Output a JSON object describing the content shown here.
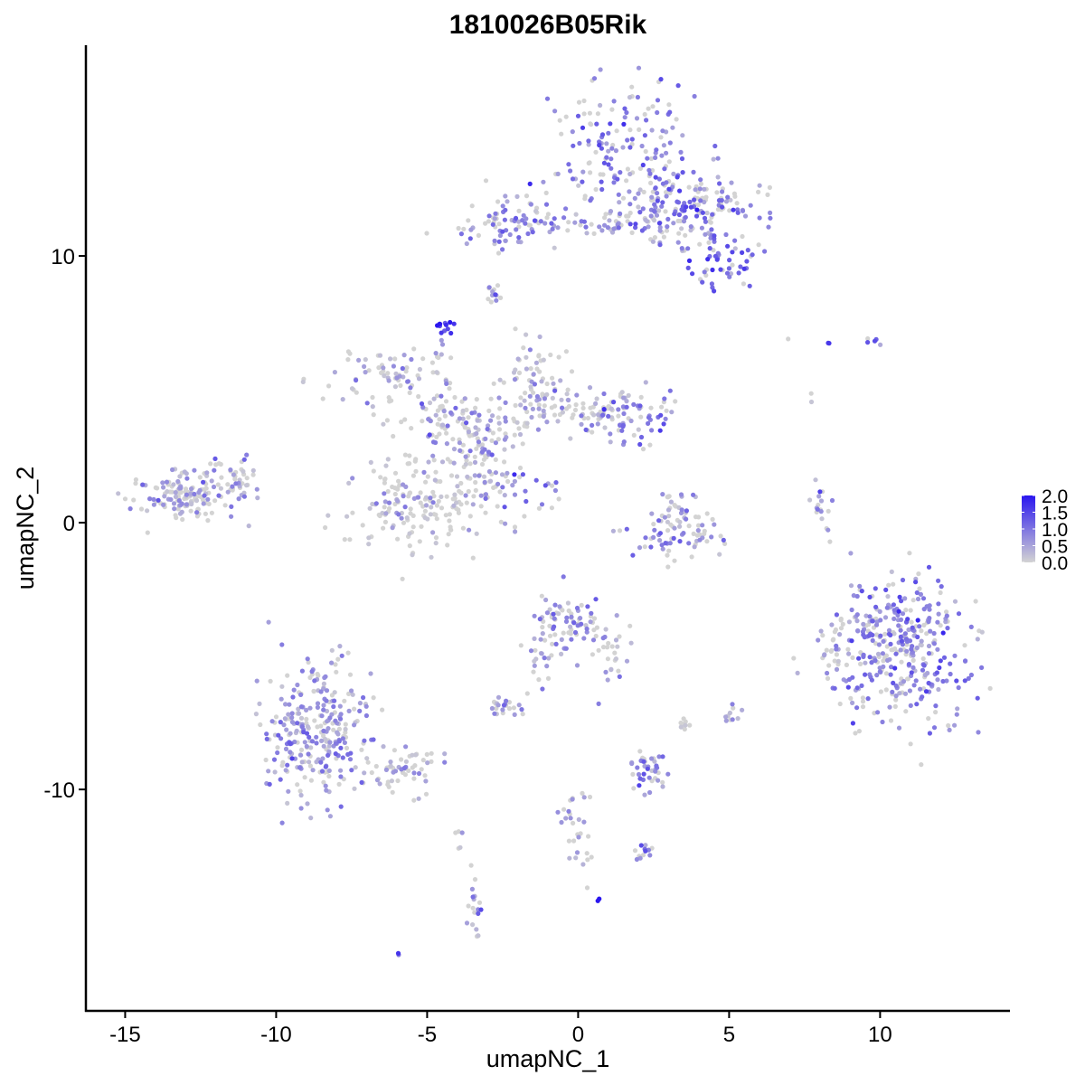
{
  "chart_data": {
    "type": "scatter",
    "title": "1810026B05Rik",
    "xlabel": "umapNC_1",
    "ylabel": "umapNC_2",
    "xlim": [
      -16.3,
      14.3
    ],
    "ylim": [
      -18.3,
      17.9
    ],
    "x_ticks": [
      -15,
      -10,
      -5,
      0,
      5,
      10
    ],
    "x_tick_labels": [
      "-15",
      "-10",
      "-5",
      "0",
      "5",
      "10"
    ],
    "y_ticks": [
      -10,
      0,
      10
    ],
    "y_tick_labels": [
      "-10",
      "0",
      "10"
    ],
    "grid": false,
    "legend_placement": "right",
    "color_scale": {
      "low_color": "#d3d3d3",
      "high_color": "#2a16ef",
      "min": 0.0,
      "max": 2.0,
      "ticks": [
        0.0,
        0.5,
        1.0,
        1.5,
        2.0
      ],
      "tick_labels": [
        "0.0",
        "0.5",
        "1.0",
        "1.5",
        "2.0"
      ]
    },
    "clusters": [
      {
        "cx": 1.5,
        "cy": 14.0,
        "sx": 1.0,
        "sy": 1.3,
        "n": 170,
        "expr": 0.55,
        "pos_frac": 0.72
      },
      {
        "cx": 3.8,
        "cy": 11.8,
        "sx": 1.2,
        "sy": 0.8,
        "n": 160,
        "expr": 0.55,
        "pos_frac": 0.7
      },
      {
        "cx": 4.9,
        "cy": 9.6,
        "sx": 0.5,
        "sy": 0.6,
        "n": 50,
        "expr": 0.7,
        "pos_frac": 0.8
      },
      {
        "cx": -2.0,
        "cy": 11.3,
        "sx": 0.8,
        "sy": 0.5,
        "n": 75,
        "expr": 0.55,
        "pos_frac": 0.7
      },
      {
        "cx": 0.5,
        "cy": 11.1,
        "sx": 2.2,
        "sy": 0.22,
        "n": 60,
        "expr": 0.45,
        "pos_frac": 0.6
      },
      {
        "cx": -2.8,
        "cy": 8.6,
        "sx": 0.15,
        "sy": 0.25,
        "n": 12,
        "expr": 0.4,
        "pos_frac": 0.6
      },
      {
        "cx": -4.4,
        "cy": 7.3,
        "sx": 0.15,
        "sy": 0.15,
        "n": 12,
        "expr": 0.9,
        "pos_frac": 0.9
      },
      {
        "cx": -6.3,
        "cy": 5.5,
        "sx": 0.9,
        "sy": 0.6,
        "n": 70,
        "expr": 0.3,
        "pos_frac": 0.5
      },
      {
        "cx": -4.0,
        "cy": 3.8,
        "sx": 1.0,
        "sy": 0.6,
        "n": 90,
        "expr": 0.4,
        "pos_frac": 0.55
      },
      {
        "cx": -3.2,
        "cy": 2.5,
        "sx": 0.9,
        "sy": 1.2,
        "n": 110,
        "expr": 0.35,
        "pos_frac": 0.5
      },
      {
        "cx": -5.3,
        "cy": 0.6,
        "sx": 1.1,
        "sy": 0.9,
        "n": 170,
        "expr": 0.2,
        "pos_frac": 0.35
      },
      {
        "cx": -1.2,
        "cy": 5.0,
        "sx": 0.7,
        "sy": 0.9,
        "n": 70,
        "expr": 0.35,
        "pos_frac": 0.5
      },
      {
        "cx": 0.4,
        "cy": 4.3,
        "sx": 1.1,
        "sy": 0.4,
        "n": 70,
        "expr": 0.3,
        "pos_frac": 0.45
      },
      {
        "cx": 1.9,
        "cy": 4.0,
        "sx": 0.6,
        "sy": 0.5,
        "n": 55,
        "expr": 0.6,
        "pos_frac": 0.75
      },
      {
        "cx": -1.5,
        "cy": 1.3,
        "sx": 0.6,
        "sy": 0.4,
        "n": 18,
        "expr": 0.7,
        "pos_frac": 0.8
      },
      {
        "cx": -4.5,
        "cy": 6.0,
        "sx": 0.15,
        "sy": 0.6,
        "n": 12,
        "expr": 0.2,
        "pos_frac": 0.4
      },
      {
        "cx": -13.0,
        "cy": 1.0,
        "sx": 0.9,
        "sy": 0.5,
        "n": 150,
        "expr": 0.35,
        "pos_frac": 0.55
      },
      {
        "cx": -11.5,
        "cy": 1.7,
        "sx": 0.5,
        "sy": 0.5,
        "n": 40,
        "expr": 0.3,
        "pos_frac": 0.5
      },
      {
        "cx": 3.1,
        "cy": -0.4,
        "sx": 0.8,
        "sy": 0.5,
        "n": 70,
        "expr": 0.45,
        "pos_frac": 0.6
      },
      {
        "cx": 3.1,
        "cy": 0.6,
        "sx": 0.3,
        "sy": 0.5,
        "n": 22,
        "expr": 0.35,
        "pos_frac": 0.55
      },
      {
        "cx": 8.1,
        "cy": 0.4,
        "sx": 0.2,
        "sy": 0.4,
        "n": 18,
        "expr": 0.35,
        "pos_frac": 0.6
      },
      {
        "cx": 10.7,
        "cy": -4.7,
        "sx": 1.1,
        "sy": 1.3,
        "n": 360,
        "expr": 0.55,
        "pos_frac": 0.7
      },
      {
        "cx": 8.5,
        "cy": -4.8,
        "sx": 0.25,
        "sy": 0.5,
        "n": 25,
        "expr": 0.3,
        "pos_frac": 0.5
      },
      {
        "cx": -0.4,
        "cy": -3.7,
        "sx": 0.6,
        "sy": 0.6,
        "n": 80,
        "expr": 0.4,
        "pos_frac": 0.6
      },
      {
        "cx": 1.0,
        "cy": -4.8,
        "sx": 0.5,
        "sy": 0.6,
        "n": 25,
        "expr": 0.35,
        "pos_frac": 0.55
      },
      {
        "cx": -1.3,
        "cy": -5.3,
        "sx": 0.3,
        "sy": 0.6,
        "n": 18,
        "expr": 0.35,
        "pos_frac": 0.55
      },
      {
        "cx": -8.6,
        "cy": -7.8,
        "sx": 0.9,
        "sy": 1.3,
        "n": 280,
        "expr": 0.4,
        "pos_frac": 0.62
      },
      {
        "cx": -6.0,
        "cy": -9.3,
        "sx": 0.9,
        "sy": 0.4,
        "n": 60,
        "expr": 0.3,
        "pos_frac": 0.5
      },
      {
        "cx": -2.4,
        "cy": -6.9,
        "sx": 0.25,
        "sy": 0.2,
        "n": 22,
        "expr": 0.5,
        "pos_frac": 0.6
      },
      {
        "cx": 2.3,
        "cy": -9.3,
        "sx": 0.4,
        "sy": 0.4,
        "n": 40,
        "expr": 0.45,
        "pos_frac": 0.6
      },
      {
        "cx": 5.0,
        "cy": -7.2,
        "sx": 0.15,
        "sy": 0.15,
        "n": 10,
        "expr": 0.4,
        "pos_frac": 0.6
      },
      {
        "cx": 3.4,
        "cy": -7.6,
        "sx": 0.15,
        "sy": 0.2,
        "n": 8,
        "expr": 0.1,
        "pos_frac": 0.2
      },
      {
        "cx": 0.0,
        "cy": -11.2,
        "sx": 0.3,
        "sy": 0.8,
        "n": 30,
        "expr": 0.3,
        "pos_frac": 0.5
      },
      {
        "cx": 2.2,
        "cy": -12.4,
        "sx": 0.3,
        "sy": 0.2,
        "n": 12,
        "expr": 0.6,
        "pos_frac": 0.7
      },
      {
        "cx": -3.4,
        "cy": -14.5,
        "sx": 0.15,
        "sy": 0.6,
        "n": 20,
        "expr": 0.4,
        "pos_frac": 0.6
      },
      {
        "cx": -3.9,
        "cy": -11.5,
        "sx": 0.1,
        "sy": 0.4,
        "n": 5,
        "expr": 0.1,
        "pos_frac": 0.2
      },
      {
        "cx": 9.7,
        "cy": 6.8,
        "sx": 0.15,
        "sy": 0.1,
        "n": 5,
        "expr": 0.6,
        "pos_frac": 0.7
      },
      {
        "cx": 8.3,
        "cy": 6.7,
        "sx": 0.05,
        "sy": 0.05,
        "n": 2,
        "expr": 0.8,
        "pos_frac": 0.8
      },
      {
        "cx": 7.7,
        "cy": 4.7,
        "sx": 0.05,
        "sy": 0.15,
        "n": 2,
        "expr": 0.1,
        "pos_frac": 0.2
      },
      {
        "cx": 7.0,
        "cy": 6.9,
        "sx": 0.05,
        "sy": 0.05,
        "n": 1,
        "expr": 0.0,
        "pos_frac": 0.1
      },
      {
        "cx": -6.0,
        "cy": -16.2,
        "sx": 0.05,
        "sy": 0.05,
        "n": 2,
        "expr": 0.8,
        "pos_frac": 0.8
      },
      {
        "cx": 0.7,
        "cy": -14.1,
        "sx": 0.05,
        "sy": 0.05,
        "n": 2,
        "expr": 1.5,
        "pos_frac": 1.0
      }
    ]
  }
}
